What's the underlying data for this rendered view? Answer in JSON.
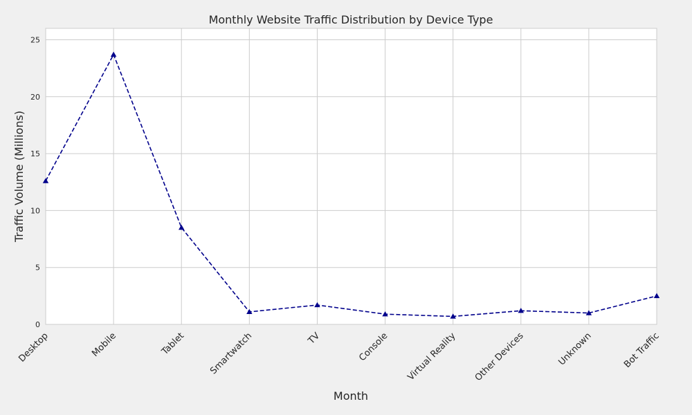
{
  "chart_data": {
    "type": "line",
    "title": "Monthly Website Traffic Distribution by Device Type",
    "xlabel": "Month",
    "ylabel": "Traffic Volume (Millions)",
    "categories": [
      "Desktop",
      "Mobile",
      "Tablet",
      "Smartwatch",
      "TV",
      "Console",
      "Virtual Reality",
      "Other Devices",
      "Unknown",
      "Bot Traffic"
    ],
    "values": [
      12.6,
      23.7,
      8.5,
      1.1,
      1.7,
      0.9,
      0.7,
      1.2,
      1.0,
      2.5
    ],
    "ylim": [
      0,
      26
    ],
    "yticks": [
      0,
      5,
      10,
      15,
      20,
      25
    ],
    "grid": true,
    "line_style": "dashed",
    "marker": "triangle",
    "line_color": "#00008b",
    "background_color": "#ffffff",
    "figure_color": "#f0f0f0",
    "grid_color": "#cccccc"
  }
}
